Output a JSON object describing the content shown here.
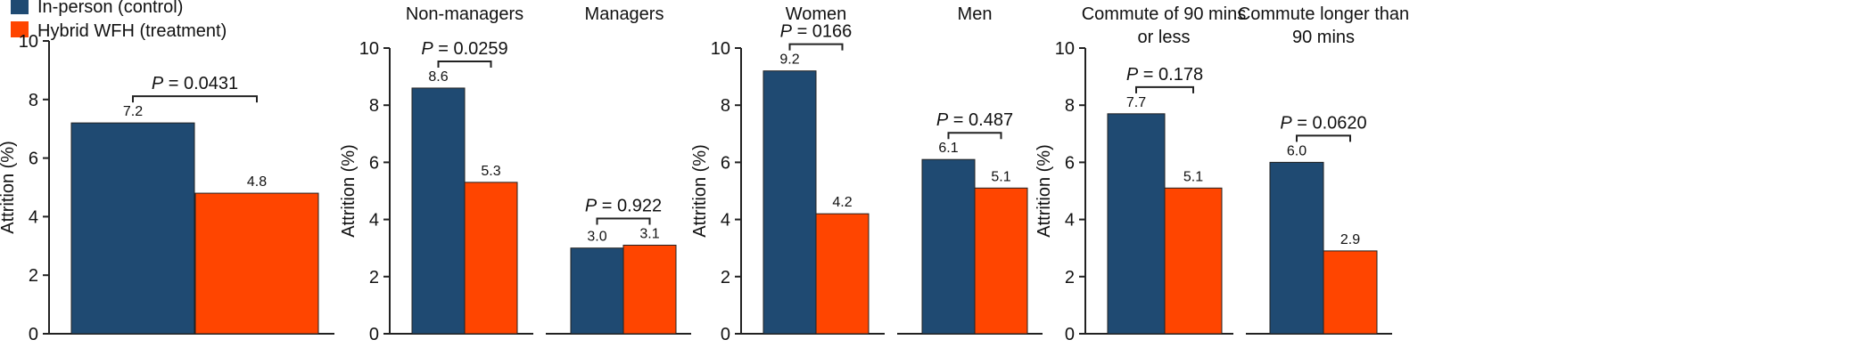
{
  "legend": [
    {
      "label": "In-person (control)",
      "color": "#1f4a72"
    },
    {
      "label": "Hybrid WFH (treatment)",
      "color": "#ff4500"
    }
  ],
  "chart_data": [
    {
      "type": "bar",
      "ylabel": "Attrition (%)",
      "ylim": [
        0,
        10
      ],
      "yticks": [
        0,
        2,
        4,
        6,
        8,
        10
      ],
      "groups": [
        {
          "title": [],
          "values": [
            7.2,
            4.8
          ],
          "labels": [
            "7.2",
            "4.8"
          ],
          "p_value": "0.0431"
        }
      ]
    },
    {
      "type": "bar",
      "ylabel": "Attrition (%)",
      "ylim": [
        0,
        10
      ],
      "yticks": [
        0,
        2,
        4,
        6,
        8,
        10
      ],
      "groups": [
        {
          "title": [
            "Non-managers"
          ],
          "values": [
            8.6,
            5.3
          ],
          "labels": [
            "8.6",
            "5.3"
          ],
          "p_value": "0.0259"
        },
        {
          "title": [
            "Managers"
          ],
          "values": [
            3.0,
            3.1
          ],
          "labels": [
            "3.0",
            "3.1"
          ],
          "p_value": "0.922"
        }
      ]
    },
    {
      "type": "bar",
      "ylabel": "Attrition (%)",
      "ylim": [
        0,
        10
      ],
      "yticks": [
        0,
        2,
        4,
        6,
        8,
        10
      ],
      "groups": [
        {
          "title": [
            "Women"
          ],
          "values": [
            9.2,
            4.2
          ],
          "labels": [
            "9.2",
            "4.2"
          ],
          "p_value": "0166"
        },
        {
          "title": [
            "Men"
          ],
          "values": [
            6.1,
            5.1
          ],
          "labels": [
            "6.1",
            "5.1"
          ],
          "p_value": "0.487"
        }
      ]
    },
    {
      "type": "bar",
      "ylabel": "Attrition (%)",
      "ylim": [
        0,
        10
      ],
      "yticks": [
        0,
        2,
        4,
        6,
        8,
        10
      ],
      "groups": [
        {
          "title": [
            "Commute of 90 mins",
            "or less"
          ],
          "values": [
            7.7,
            5.1
          ],
          "labels": [
            "7.7",
            "5.1"
          ],
          "p_value": "0.178"
        },
        {
          "title": [
            "Commute longer than",
            "90 mins"
          ],
          "values": [
            6.0,
            2.9
          ],
          "labels": [
            "6.0",
            "2.9"
          ],
          "p_value": "0.0620"
        }
      ]
    }
  ]
}
